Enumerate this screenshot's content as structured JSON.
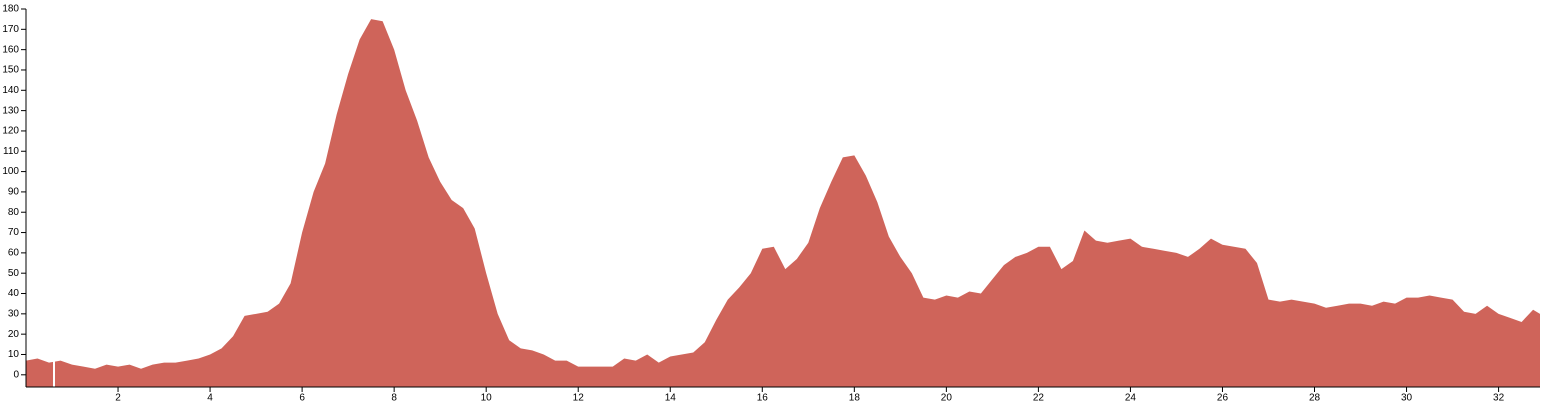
{
  "chart_data": {
    "type": "area",
    "color": "#cf645a",
    "x": [
      0,
      0.25,
      0.5,
      0.75,
      1,
      1.25,
      1.5,
      1.75,
      2,
      2.25,
      2.5,
      2.75,
      3,
      3.25,
      3.5,
      3.75,
      4,
      4.25,
      4.5,
      4.75,
      5,
      5.25,
      5.5,
      5.75,
      6,
      6.25,
      6.5,
      6.75,
      7,
      7.25,
      7.5,
      7.75,
      8,
      8.25,
      8.5,
      8.75,
      9,
      9.25,
      9.5,
      9.75,
      10,
      10.25,
      10.5,
      10.75,
      11,
      11.25,
      11.5,
      11.75,
      12,
      12.25,
      12.5,
      12.75,
      13,
      13.25,
      13.5,
      13.75,
      14,
      14.25,
      14.5,
      14.75,
      15,
      15.25,
      15.5,
      15.75,
      16,
      16.25,
      16.5,
      16.75,
      17,
      17.25,
      17.5,
      17.75,
      18,
      18.25,
      18.5,
      18.75,
      19,
      19.25,
      19.5,
      19.75,
      20,
      20.25,
      20.5,
      20.75,
      21,
      21.25,
      21.5,
      21.75,
      22,
      22.25,
      22.5,
      22.75,
      23,
      23.25,
      23.5,
      23.75,
      24,
      24.25,
      24.5,
      24.75,
      25,
      25.25,
      25.5,
      25.75,
      26,
      26.25,
      26.5,
      26.75,
      27,
      27.25,
      27.5,
      27.75,
      28,
      28.25,
      28.5,
      28.75,
      29,
      29.25,
      29.5,
      29.75,
      30,
      30.25,
      30.5,
      30.75,
      31,
      31.25,
      31.5,
      31.75,
      32,
      32.25,
      32.5,
      32.75,
      32.9
    ],
    "values": [
      7,
      8,
      6,
      7,
      5,
      4,
      3,
      5,
      4,
      5,
      3,
      5,
      6,
      6,
      7,
      8,
      10,
      13,
      19,
      29,
      30,
      31,
      35,
      45,
      70,
      90,
      104,
      128,
      148,
      165,
      175,
      174,
      160,
      140,
      125,
      107,
      95,
      86,
      82,
      72,
      50,
      30,
      17,
      13,
      12,
      10,
      7,
      7,
      4,
      4,
      4,
      4,
      8,
      7,
      10,
      6,
      9,
      10,
      11,
      16,
      27,
      37,
      43,
      50,
      62,
      63,
      52,
      57,
      65,
      82,
      95,
      107,
      108,
      98,
      85,
      68,
      58,
      50,
      38,
      37,
      39,
      38,
      41,
      40,
      47,
      54,
      58,
      60,
      63,
      63,
      52,
      56,
      71,
      66,
      65,
      66,
      67,
      63,
      62,
      61,
      60,
      58,
      62,
      67,
      64,
      63,
      62,
      55,
      37,
      36,
      37,
      36,
      35,
      33,
      34,
      35,
      35,
      34,
      36,
      35,
      38,
      38,
      39,
      38,
      37,
      31,
      30,
      34,
      30,
      28,
      26,
      32,
      30
    ],
    "xlim": [
      0,
      32.9
    ],
    "ylim": [
      -6,
      180
    ],
    "xticks": [
      2,
      4,
      6,
      8,
      10,
      12,
      14,
      16,
      18,
      20,
      22,
      24,
      26,
      28,
      30,
      32
    ],
    "yticks": [
      0,
      10,
      20,
      30,
      40,
      50,
      60,
      70,
      80,
      90,
      100,
      110,
      120,
      130,
      140,
      150,
      160,
      170,
      180
    ]
  }
}
